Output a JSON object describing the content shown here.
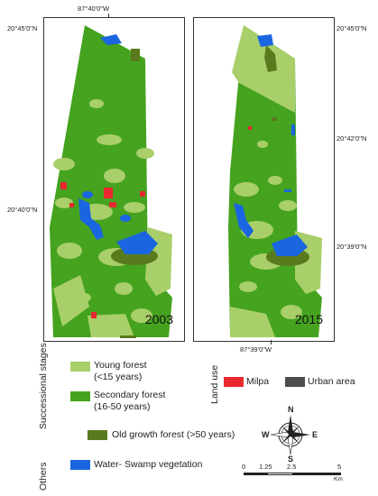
{
  "map": {
    "top_coord": "87°40'0\"W",
    "bottom_coord": "87°39'0\"W",
    "left_panel": {
      "year": "2003",
      "lat_label": "20°45'0\"N",
      "lat_label2": "20°40'0\"N"
    },
    "right_panel": {
      "year": "2015",
      "lat_labels": [
        "20°45'0\"N",
        "20°42'0\"N",
        "20°39'0\"N"
      ]
    }
  },
  "legend": {
    "successional_title": "Successional stages",
    "land_use_title": "Land use",
    "others_title": "Others",
    "items": [
      {
        "label_line1": "Young forest",
        "label_line2": "(<15 years)",
        "color": "#a9cf6a"
      },
      {
        "label_line1": "Secondary forest",
        "label_line2": "(16-50 years)",
        "color": "#45a31f"
      },
      {
        "label_line1": "Old growth forest (>50 years)",
        "label_line2": "",
        "color": "#5a7a1e"
      },
      {
        "label_line1": "Water- Swamp vegetation",
        "label_line2": "",
        "color": "#1a66e0"
      },
      {
        "label_line1": "Milpa",
        "label_line2": "",
        "color": "#e8282e"
      },
      {
        "label_line1": "Urban area",
        "label_line2": "",
        "color": "#4d4d4d"
      }
    ]
  },
  "compass": {
    "n": "N",
    "s": "S",
    "e": "E",
    "w": "W"
  },
  "scale_bar": {
    "ticks": [
      "0",
      "1.25",
      "2.5",
      "5"
    ],
    "unit": "Km"
  }
}
